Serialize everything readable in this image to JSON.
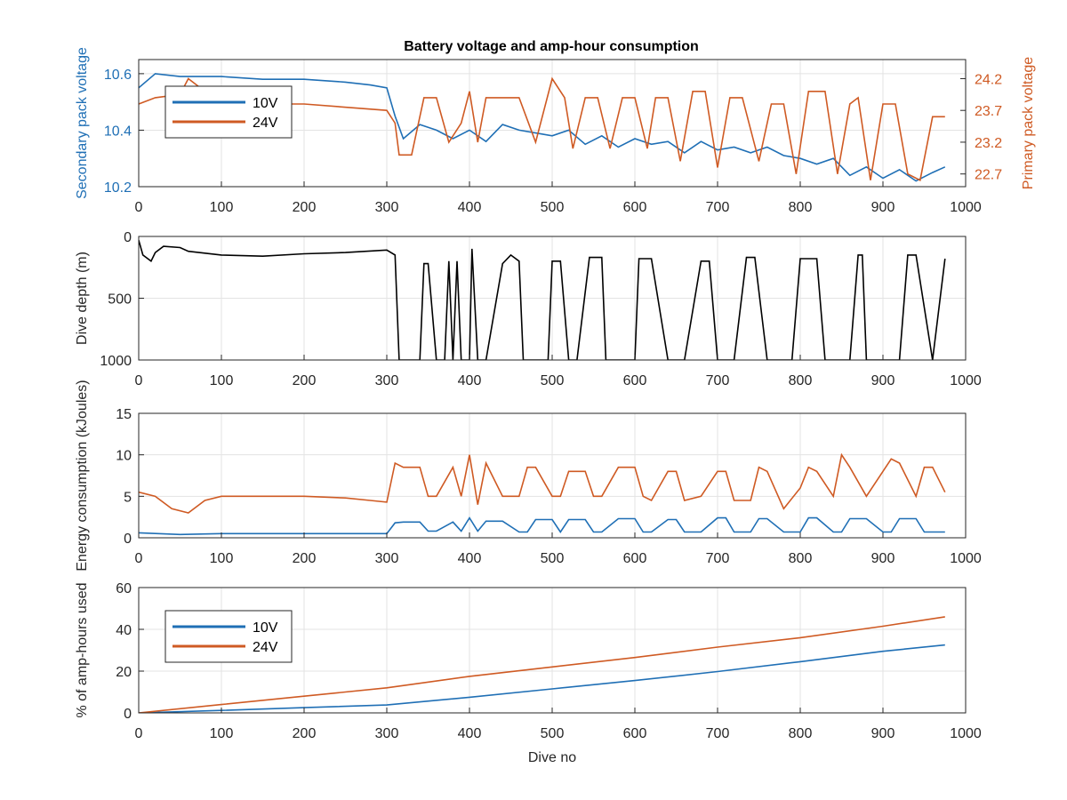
{
  "figure_title": "Battery voltage and amp-hour consumption",
  "colors": {
    "blue": "#1f6fb5",
    "orange": "#cf5a23",
    "black": "#000000",
    "grid": "#e3e3e3"
  },
  "chart_data": [
    {
      "type": "line",
      "title": "Battery voltage and amp-hour consumption",
      "xlabel": "",
      "xlim": [
        0,
        1000
      ],
      "xticks": [
        0,
        100,
        200,
        300,
        400,
        500,
        600,
        700,
        800,
        900,
        1000
      ],
      "y_left": {
        "label": "Secondary pack voltage",
        "lim": [
          10.2,
          10.65
        ],
        "ticks": [
          10.2,
          10.4,
          10.6
        ],
        "tick_labels": [
          "10.2",
          "10.4",
          "10.6"
        ]
      },
      "y_right": {
        "label": "Primary pack voltage",
        "lim": [
          22.5,
          24.5
        ],
        "ticks": [
          22.7,
          23.2,
          23.7,
          24.2
        ],
        "tick_labels": [
          "22.7",
          "23.2",
          "23.7",
          "24.2"
        ]
      },
      "grid": true,
      "legend": {
        "placement": "top-left",
        "entries": [
          "10V",
          "24V"
        ]
      },
      "series": [
        {
          "name": "10V",
          "axis": "left",
          "x": [
            0,
            20,
            50,
            100,
            150,
            200,
            250,
            280,
            300,
            310,
            320,
            340,
            360,
            380,
            400,
            420,
            440,
            460,
            480,
            500,
            520,
            540,
            560,
            580,
            600,
            620,
            640,
            660,
            680,
            700,
            720,
            740,
            760,
            780,
            800,
            820,
            840,
            860,
            880,
            900,
            920,
            940,
            960,
            975
          ],
          "y": [
            10.55,
            10.6,
            10.59,
            10.59,
            10.58,
            10.58,
            10.57,
            10.56,
            10.55,
            10.45,
            10.37,
            10.42,
            10.4,
            10.37,
            10.4,
            10.36,
            10.42,
            10.4,
            10.39,
            10.38,
            10.4,
            10.35,
            10.38,
            10.34,
            10.37,
            10.35,
            10.36,
            10.32,
            10.36,
            10.33,
            10.34,
            10.32,
            10.34,
            10.31,
            10.3,
            10.28,
            10.3,
            10.24,
            10.27,
            10.23,
            10.26,
            10.22,
            10.25,
            10.27
          ]
        },
        {
          "name": "24V",
          "axis": "right",
          "x": [
            0,
            20,
            50,
            60,
            100,
            200,
            300,
            310,
            315,
            330,
            345,
            360,
            375,
            390,
            400,
            410,
            420,
            440,
            460,
            480,
            500,
            515,
            525,
            540,
            555,
            570,
            585,
            600,
            615,
            625,
            640,
            655,
            670,
            685,
            700,
            715,
            730,
            750,
            765,
            780,
            795,
            810,
            830,
            845,
            860,
            870,
            885,
            900,
            915,
            930,
            945,
            960,
            975
          ],
          "y": [
            23.8,
            23.9,
            23.95,
            24.2,
            23.8,
            23.8,
            23.7,
            23.5,
            23.0,
            23.0,
            23.9,
            23.9,
            23.2,
            23.5,
            24.0,
            23.2,
            23.9,
            23.9,
            23.9,
            23.2,
            24.2,
            23.9,
            23.1,
            23.9,
            23.9,
            23.1,
            23.9,
            23.9,
            23.1,
            23.9,
            23.9,
            22.9,
            24.0,
            24.0,
            22.8,
            23.9,
            23.9,
            22.9,
            23.8,
            23.8,
            22.7,
            24.0,
            24.0,
            22.7,
            23.8,
            23.9,
            22.6,
            23.8,
            23.8,
            22.7,
            22.6,
            23.6,
            23.6
          ]
        }
      ]
    },
    {
      "type": "line",
      "xlabel": "",
      "ylabel": "Dive depth (m)",
      "xlim": [
        0,
        1000
      ],
      "xticks": [
        0,
        100,
        200,
        300,
        400,
        500,
        600,
        700,
        800,
        900,
        1000
      ],
      "ylim": [
        0,
        1000
      ],
      "y_reversed": true,
      "yticks": [
        0,
        500,
        1000
      ],
      "grid": true,
      "series": [
        {
          "name": "",
          "x": [
            0,
            5,
            15,
            20,
            30,
            50,
            60,
            100,
            150,
            200,
            250,
            300,
            310,
            315,
            320,
            340,
            345,
            350,
            360,
            370,
            375,
            380,
            385,
            390,
            400,
            403,
            410,
            420,
            440,
            450,
            460,
            465,
            480,
            495,
            500,
            510,
            520,
            530,
            545,
            560,
            565,
            580,
            600,
            605,
            620,
            640,
            645,
            660,
            680,
            690,
            700,
            720,
            735,
            745,
            760,
            780,
            790,
            800,
            820,
            830,
            840,
            860,
            870,
            875,
            880,
            900,
            920,
            930,
            940,
            960,
            975
          ],
          "y": [
            30,
            150,
            200,
            130,
            80,
            90,
            120,
            150,
            160,
            140,
            130,
            110,
            150,
            1000,
            1000,
            1000,
            220,
            220,
            1000,
            1000,
            200,
            1000,
            200,
            1000,
            1000,
            100,
            1000,
            1000,
            220,
            150,
            200,
            1000,
            1000,
            1000,
            200,
            200,
            1000,
            1000,
            170,
            170,
            1000,
            1000,
            1000,
            180,
            180,
            1000,
            1000,
            1000,
            200,
            200,
            1000,
            1000,
            170,
            170,
            1000,
            1000,
            1000,
            180,
            180,
            1000,
            1000,
            1000,
            150,
            150,
            1000,
            1000,
            1000,
            150,
            150,
            1000,
            180
          ]
        }
      ]
    },
    {
      "type": "line",
      "xlabel": "",
      "ylabel": "Energy consumption (kJoules)",
      "xlim": [
        0,
        1000
      ],
      "xticks": [
        0,
        100,
        200,
        300,
        400,
        500,
        600,
        700,
        800,
        900,
        1000
      ],
      "ylim": [
        0,
        15
      ],
      "yticks": [
        0,
        5,
        10,
        15
      ],
      "grid": true,
      "series": [
        {
          "name": "24V",
          "x": [
            0,
            20,
            40,
            60,
            80,
            100,
            150,
            200,
            250,
            280,
            300,
            310,
            320,
            340,
            350,
            360,
            380,
            390,
            400,
            410,
            420,
            440,
            460,
            470,
            480,
            500,
            510,
            520,
            540,
            550,
            560,
            580,
            600,
            610,
            620,
            640,
            650,
            660,
            680,
            700,
            710,
            720,
            740,
            750,
            760,
            780,
            800,
            810,
            820,
            840,
            850,
            860,
            880,
            900,
            910,
            920,
            940,
            950,
            960,
            975
          ],
          "y": [
            5.5,
            5.0,
            3.5,
            3.0,
            4.5,
            5.0,
            5.0,
            5.0,
            4.8,
            4.5,
            4.3,
            9.0,
            8.5,
            8.5,
            5.0,
            5.0,
            8.5,
            5.0,
            10.0,
            4.0,
            9.0,
            5.0,
            5.0,
            8.5,
            8.5,
            5.0,
            5.0,
            8.0,
            8.0,
            5.0,
            5.0,
            8.5,
            8.5,
            5.0,
            4.5,
            8.0,
            8.0,
            4.5,
            5.0,
            8.0,
            8.0,
            4.5,
            4.5,
            8.5,
            8.0,
            3.5,
            6.0,
            8.5,
            8.0,
            5.0,
            10.0,
            8.5,
            5.0,
            8.0,
            9.5,
            9.0,
            5.0,
            8.5,
            8.5,
            5.5
          ]
        },
        {
          "name": "10V",
          "x": [
            0,
            50,
            100,
            200,
            300,
            310,
            320,
            340,
            350,
            360,
            380,
            390,
            400,
            410,
            420,
            440,
            460,
            470,
            480,
            500,
            510,
            520,
            540,
            550,
            560,
            580,
            600,
            610,
            620,
            640,
            650,
            660,
            680,
            700,
            710,
            720,
            740,
            750,
            760,
            780,
            800,
            810,
            820,
            840,
            850,
            860,
            880,
            900,
            910,
            920,
            940,
            950,
            960,
            975
          ],
          "y": [
            0.6,
            0.4,
            0.5,
            0.5,
            0.5,
            1.8,
            1.9,
            1.9,
            0.8,
            0.8,
            1.9,
            0.8,
            2.4,
            0.8,
            2.0,
            2.0,
            0.7,
            0.7,
            2.2,
            2.2,
            0.7,
            2.2,
            2.2,
            0.7,
            0.7,
            2.3,
            2.3,
            0.7,
            0.7,
            2.2,
            2.2,
            0.7,
            0.7,
            2.4,
            2.4,
            0.7,
            0.7,
            2.3,
            2.3,
            0.7,
            0.7,
            2.4,
            2.4,
            0.7,
            0.7,
            2.3,
            2.3,
            0.7,
            0.7,
            2.3,
            2.3,
            0.7,
            0.7,
            0.7
          ]
        }
      ]
    },
    {
      "type": "line",
      "xlabel": "Dive no",
      "ylabel": "% of amp-hours used",
      "xlim": [
        0,
        1000
      ],
      "xticks": [
        0,
        100,
        200,
        300,
        400,
        500,
        600,
        700,
        800,
        900,
        1000
      ],
      "ylim": [
        0,
        60
      ],
      "yticks": [
        0,
        20,
        40,
        60
      ],
      "grid": true,
      "legend": {
        "placement": "top-left",
        "entries": [
          "10V",
          "24V"
        ]
      },
      "series": [
        {
          "name": "10V",
          "x": [
            0,
            100,
            200,
            300,
            400,
            500,
            600,
            700,
            800,
            900,
            975
          ],
          "y": [
            0,
            1.2,
            2.5,
            3.8,
            7.5,
            11.5,
            15.5,
            19.8,
            24.5,
            29.5,
            32.5
          ]
        },
        {
          "name": "24V",
          "x": [
            0,
            100,
            200,
            300,
            400,
            500,
            600,
            700,
            800,
            900,
            975
          ],
          "y": [
            0,
            4,
            8,
            12,
            17.5,
            22,
            26.5,
            31.5,
            36,
            41.5,
            46
          ]
        }
      ]
    }
  ]
}
